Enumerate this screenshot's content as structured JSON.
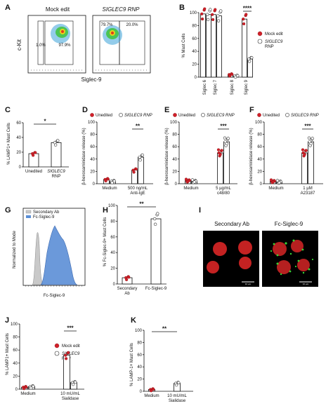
{
  "panels": {
    "A": {
      "label": "A",
      "gate_titles": [
        "Mock edit",
        "SIGLEC9 RNP"
      ],
      "left_gates": [
        "1.0%",
        "97.9%"
      ],
      "right_gates": [
        "79.7%",
        "20.0%"
      ],
      "ylabel": "c-Kit",
      "xlabel": "Siglec-9"
    },
    "B": {
      "label": "B",
      "ylabel": "% Mast Cells",
      "legend": [
        "Mock edit",
        "SIGLEC9",
        "RNP"
      ],
      "sig": "****"
    },
    "C": {
      "label": "C",
      "ylabel": "% LAMP1+ Mast Cells",
      "sig": "*"
    },
    "D": {
      "label": "D",
      "legend_a": "Unedited",
      "legend_b": "SIGLEC9 RNP",
      "ylabel": "β-hexosaminidase release (%)",
      "sig": "**"
    },
    "E": {
      "label": "E",
      "legend_a": "Unedited",
      "legend_b": "SIGLEC9 RNP",
      "ylabel": "β-hexosaminidase release (%)",
      "sig": "***"
    },
    "F": {
      "label": "F",
      "legend_a": "Unedited",
      "legend_b": "SIGLEC9 RNP",
      "ylabel": "β-hexosaminidase release (%)",
      "sig": "***"
    },
    "G": {
      "label": "G",
      "legend": [
        "Secondary Ab",
        "Fc-Siglec-9"
      ],
      "ylabel": "Normalized to Mode",
      "xlabel": "Fc-Siglec-9"
    },
    "H": {
      "label": "H",
      "ylabel": "% Fc-Siglec-9+ Mast Cells",
      "sig": "**"
    },
    "I": {
      "label": "I",
      "titles": [
        "Secondary Ab",
        "Fc-Siglec-9"
      ],
      "scale": [
        "10 µm",
        "10 µm"
      ]
    },
    "J": {
      "label": "J",
      "ylabel": "% LAMP1+ Mast Cells",
      "legend": [
        "Mock edit",
        "SIGLEC9",
        "RNP"
      ],
      "sig": "***"
    },
    "K": {
      "label": "K",
      "ylabel": "% LAMP-1+ Mast Cells",
      "sig": "**"
    }
  },
  "chart_data": [
    {
      "panel": "B",
      "type": "bar",
      "categories": [
        "Siglec 6",
        "Siglec 7",
        "Siglec 8",
        "Siglec 9"
      ],
      "series": [
        {
          "name": "Mock edit",
          "values": [
            98,
            97,
            4,
            90
          ]
        },
        {
          "name": "SIGLEC9 RNP",
          "values": [
            97,
            95,
            2,
            28
          ]
        }
      ],
      "ylim": [
        0,
        100
      ],
      "yticks": [
        "0",
        "20",
        "40",
        "60",
        "80",
        "100"
      ]
    },
    {
      "panel": "C",
      "type": "bar",
      "categories": [
        "Unedited",
        "SIGLEC9 RNP"
      ],
      "values": [
        18,
        33
      ],
      "ylim": [
        0,
        60
      ],
      "yticks": [
        "0",
        "20",
        "40",
        "60"
      ]
    },
    {
      "panel": "D",
      "type": "bar",
      "categories": [
        "Medium",
        "500 ng/mL Anti-IgE"
      ],
      "series": [
        {
          "name": "Unedited",
          "values": [
            7,
            22
          ]
        },
        {
          "name": "SIGLEC9 RNP",
          "values": [
            4,
            43
          ]
        }
      ],
      "ylim": [
        0,
        100
      ],
      "yticks": [
        "0",
        "20",
        "40",
        "60",
        "80",
        "100"
      ]
    },
    {
      "panel": "E",
      "type": "bar",
      "categories": [
        "Medium",
        "5 µg/mL c48/80"
      ],
      "series": [
        {
          "name": "Unedited",
          "values": [
            5,
            50
          ]
        },
        {
          "name": "SIGLEC9 RNP",
          "values": [
            4,
            68
          ]
        }
      ],
      "ylim": [
        0,
        100
      ],
      "yticks": [
        "0",
        "20",
        "40",
        "60",
        "80",
        "100"
      ]
    },
    {
      "panel": "F",
      "type": "bar",
      "categories": [
        "Medium",
        "1 µM A23187"
      ],
      "series": [
        {
          "name": "Unedited",
          "values": [
            4,
            50
          ]
        },
        {
          "name": "SIGLEC9 RNP",
          "values": [
            3,
            68
          ]
        }
      ],
      "ylim": [
        0,
        100
      ],
      "yticks": [
        "0",
        "20",
        "40",
        "60",
        "80",
        "100"
      ]
    },
    {
      "panel": "H",
      "type": "bar",
      "categories": [
        "Secondary Ab",
        "Fc-Siglec-9"
      ],
      "values": [
        8,
        83
      ],
      "ylim": [
        0,
        100
      ],
      "yticks": [
        "0",
        "20",
        "40",
        "60",
        "80",
        "100"
      ]
    },
    {
      "panel": "J",
      "type": "bar",
      "categories": [
        "Medium",
        "10 mU/mL Sialidase"
      ],
      "series": [
        {
          "name": "Mock edit",
          "values": [
            3,
            52
          ]
        },
        {
          "name": "SIGLEC9 RNP",
          "values": [
            4,
            10
          ]
        }
      ],
      "ylim": [
        0,
        100
      ],
      "yticks": [
        "0",
        "20",
        "40",
        "60",
        "80",
        "100"
      ]
    },
    {
      "panel": "K",
      "type": "bar",
      "categories": [
        "Medium",
        "10 mU/mL Sialidase"
      ],
      "values": [
        3,
        13
      ],
      "ylim": [
        0,
        100
      ],
      "yticks": [
        "0",
        "20",
        "40",
        "60",
        "80",
        "100"
      ]
    }
  ]
}
